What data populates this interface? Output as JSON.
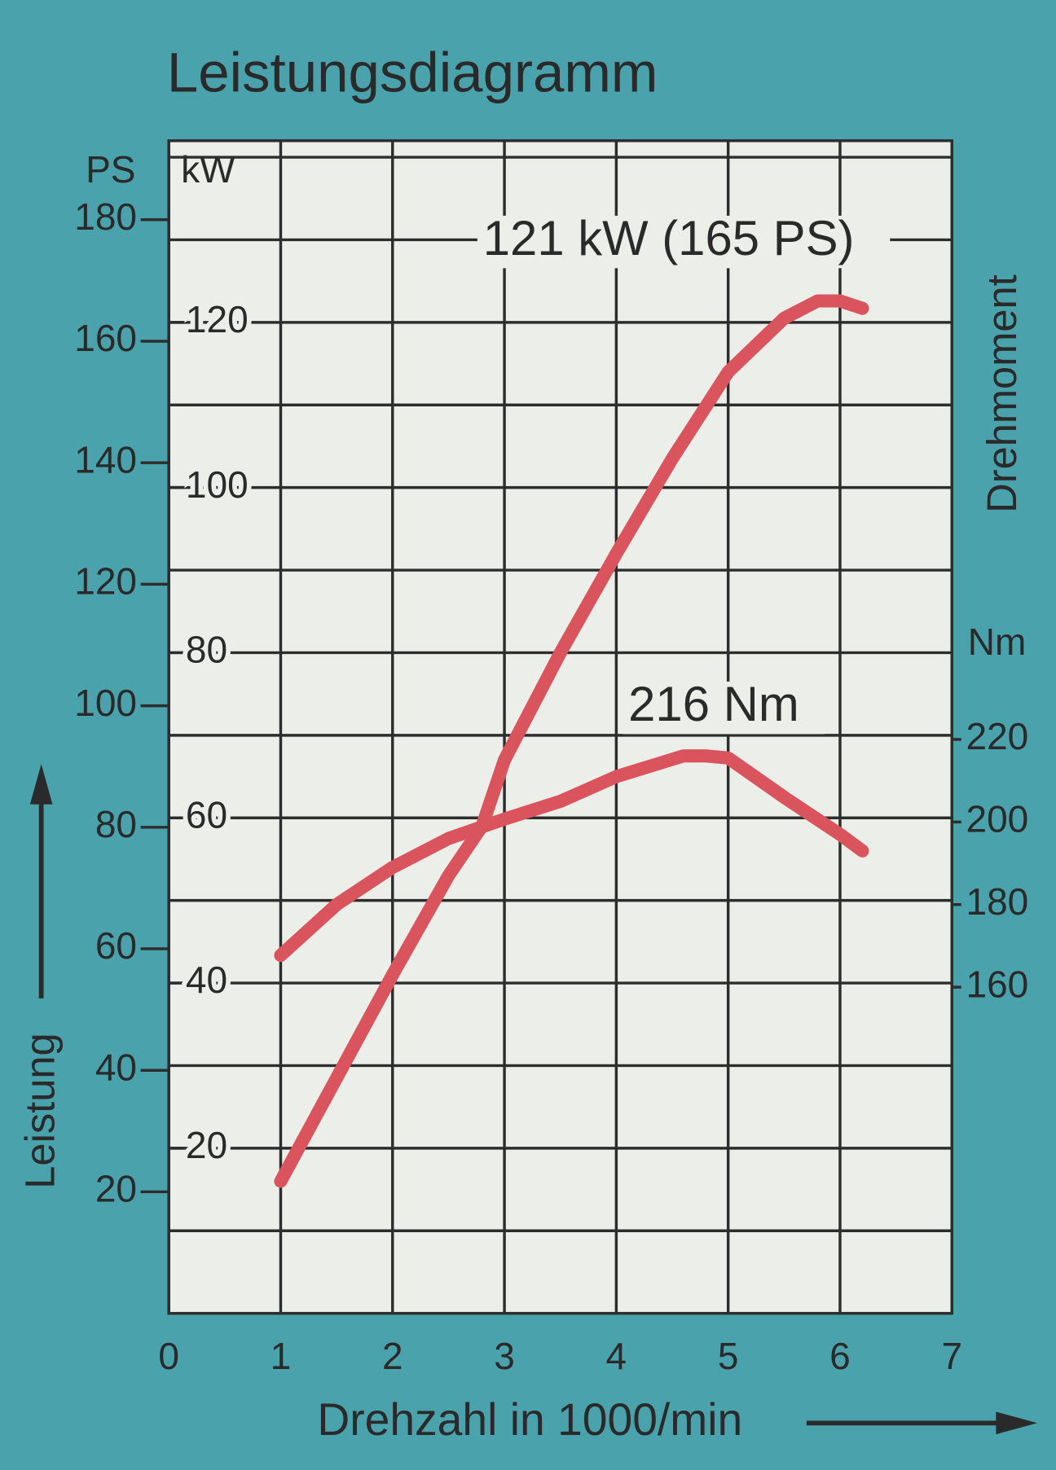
{
  "chart_data": {
    "type": "line",
    "title": "Leistungsdiagramm",
    "ylabel": "Leistung",
    "y2label": "Drehmoment",
    "xlabel": "Drehzahl in 1000/min",
    "y_unit": "kW",
    "ps_unit": "PS",
    "y2_unit": "Nm",
    "xlim": [
      0,
      7
    ],
    "xticks": [
      0,
      1,
      2,
      3,
      4,
      5,
      6,
      7
    ],
    "ylim": [
      0,
      142
    ],
    "yticks": [
      20,
      40,
      60,
      80,
      100,
      120
    ],
    "ygrid": [
      10,
      20,
      30,
      40,
      50,
      60,
      70,
      80,
      90,
      100,
      110,
      120,
      130,
      140
    ],
    "pslim": [
      0,
      193
    ],
    "psticks": [
      20,
      40,
      60,
      80,
      100,
      120,
      140,
      160,
      180
    ],
    "y2lim": [
      81,
      365
    ],
    "y2ticks": [
      160,
      180,
      200,
      220
    ],
    "grid": true,
    "series": [
      {
        "color": "#d9545c",
        "axis": "y",
        "x": [
          1,
          1.5,
          2,
          2.5,
          2.8,
          3,
          3.5,
          4,
          4.5,
          5,
          5.5,
          5.8,
          6,
          6.2
        ],
        "values": [
          16,
          28.5,
          41,
          53,
          59,
          67,
          80,
          92,
          103.5,
          114,
          120.5,
          122.6,
          122.6,
          121.7
        ]
      },
      {
        "color": "#d9545c",
        "axis": "y2",
        "x": [
          1,
          1.5,
          2,
          2.5,
          3,
          3.5,
          4,
          4.6,
          4.8,
          5,
          5.5,
          6,
          6.2
        ],
        "values": [
          167.7,
          180,
          189,
          196,
          200.7,
          205,
          211,
          216,
          216,
          215.5,
          206,
          197,
          193
        ]
      }
    ],
    "annotations": [
      {
        "text": "121 kW (165 PS)"
      },
      {
        "text": "216 Nm"
      }
    ]
  }
}
